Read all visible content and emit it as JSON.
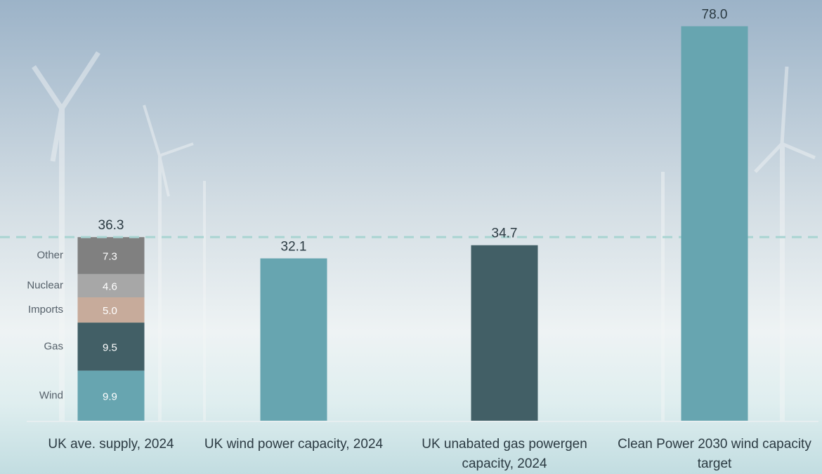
{
  "chart_data": {
    "type": "bar",
    "categories": [
      "UK ave. supply, 2024",
      "UK wind power capacity, 2024",
      "UK unabated gas powergen capacity, 2024",
      "Clean Power 2030 wind capacity target"
    ],
    "values": [
      36.3,
      32.1,
      34.7,
      78.0
    ],
    "value_labels": [
      "36.3",
      "32.1",
      "34.7",
      "78.0"
    ],
    "colors": [
      "#a9d4d2",
      "#67a5b0",
      "#425f66",
      "#67a5b0"
    ],
    "series": [
      {
        "name": "Wind",
        "color": "#67a5b0",
        "values": [
          9.9,
          null,
          null,
          null
        ],
        "value_labels": [
          "9.9",
          null,
          null,
          null
        ]
      },
      {
        "name": "Gas",
        "color": "#425f66",
        "values": [
          9.5,
          null,
          null,
          null
        ],
        "value_labels": [
          "9.5",
          null,
          null,
          null
        ]
      },
      {
        "name": "Imports",
        "color": "#c7ab9b",
        "values": [
          5.0,
          null,
          null,
          null
        ],
        "value_labels": [
          "5.0",
          null,
          null,
          null
        ]
      },
      {
        "name": "Nuclear",
        "color": "#a7a7a7",
        "values": [
          4.6,
          null,
          null,
          null
        ],
        "value_labels": [
          "4.6",
          null,
          null,
          null
        ]
      },
      {
        "name": "Other",
        "color": "#808080",
        "values": [
          7.3,
          null,
          null,
          null
        ],
        "value_labels": [
          "7.3",
          null,
          null,
          null
        ]
      }
    ],
    "ylim": [
      0,
      80
    ]
  }
}
